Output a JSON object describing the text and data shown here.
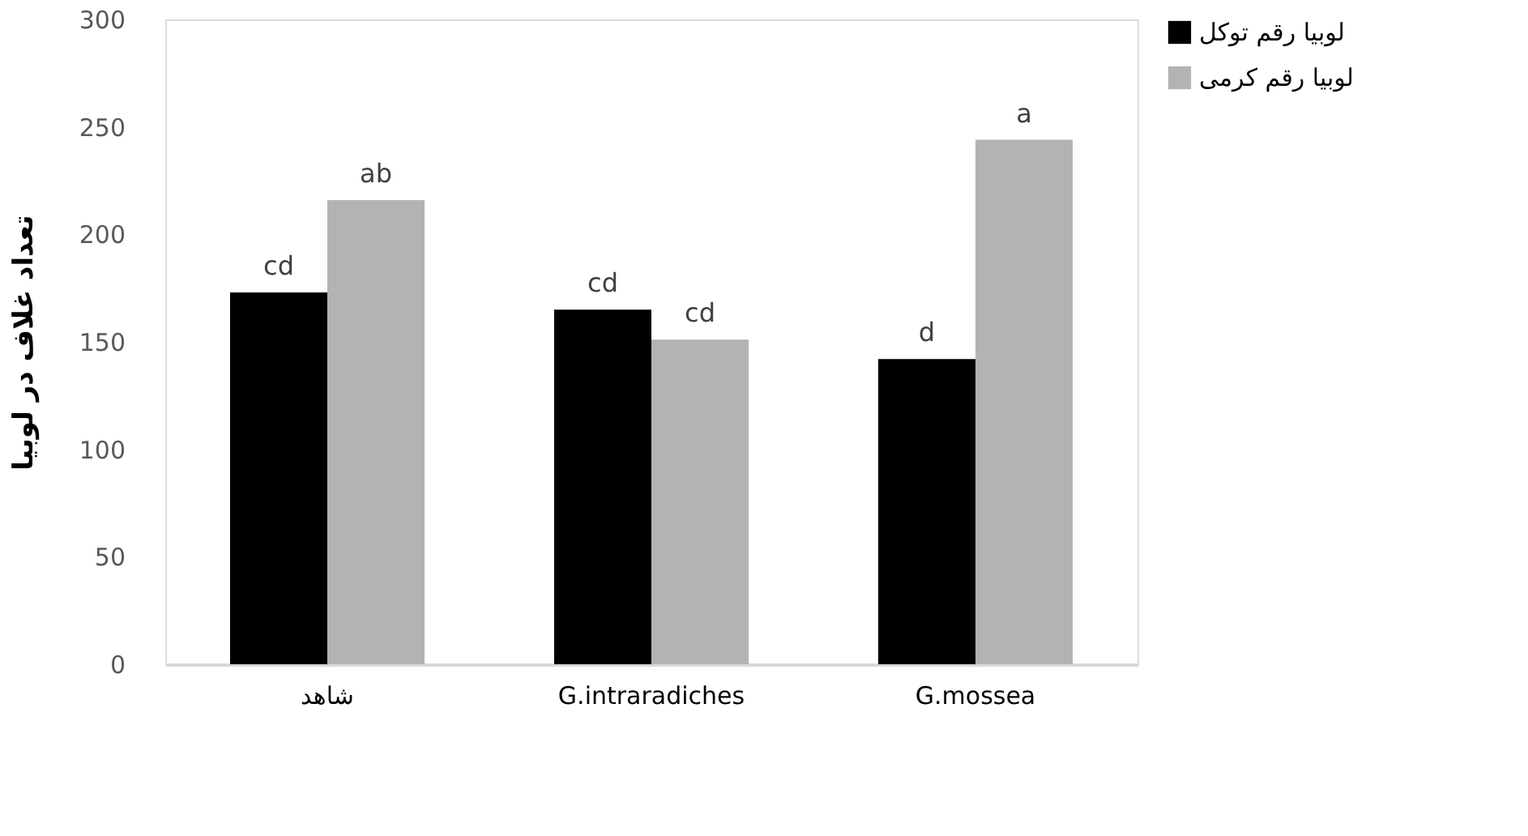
{
  "chart_data": {
    "type": "bar",
    "ylabel": "تعداد غلاف در لوبیا",
    "categories": [
      "شاهد",
      "G.intraradiches",
      "G.mossea"
    ],
    "series": [
      {
        "name": "لوبیا رقم توکل",
        "color": "#000000",
        "values": [
          173,
          165,
          142
        ],
        "value_labels": [
          "cd",
          "cd",
          "d"
        ]
      },
      {
        "name": "لوبیا رقم کرمی",
        "color": "#b3b3b3",
        "values": [
          216,
          151,
          244
        ],
        "value_labels": [
          "ab",
          "cd",
          "a"
        ]
      }
    ],
    "ylim": [
      0,
      300
    ],
    "yticks": [
      0,
      50,
      100,
      150,
      200,
      250,
      300
    ],
    "grid": false,
    "legend": "right"
  }
}
